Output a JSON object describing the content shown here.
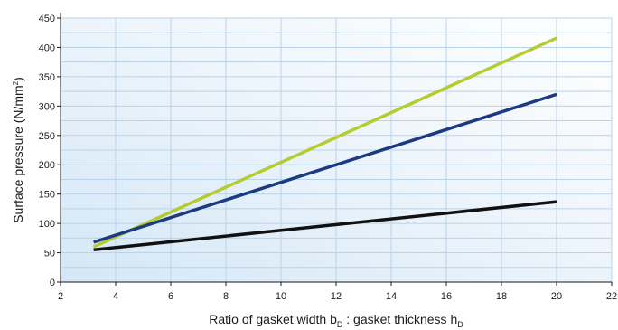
{
  "chart_data": {
    "type": "line",
    "xlabel": {
      "prefix": "Ratio of gasket width b",
      "sub1": "D",
      "mid": " : gasket thickness h",
      "sub2": "D"
    },
    "ylabel": {
      "main": "Surface pressure (N/mm",
      "sup": "2",
      "end": ")"
    },
    "xlim": [
      2,
      22
    ],
    "ylim": [
      0,
      450
    ],
    "xticks": [
      "2",
      "4",
      "6",
      "8",
      "10",
      "12",
      "14",
      "16",
      "18",
      "20",
      "22"
    ],
    "yticks": [
      "0",
      "50",
      "100",
      "150",
      "200",
      "250",
      "300",
      "350",
      "400",
      "450"
    ],
    "grid": true,
    "series": [
      {
        "color": "#b5cc2f",
        "x": [
          3.2,
          20
        ],
        "y": [
          60,
          416
        ]
      },
      {
        "color": "#1c3a82",
        "x": [
          3.2,
          20
        ],
        "y": [
          68,
          320
        ]
      },
      {
        "color": "#111111",
        "x": [
          3.2,
          20
        ],
        "y": [
          55,
          137
        ]
      }
    ]
  }
}
